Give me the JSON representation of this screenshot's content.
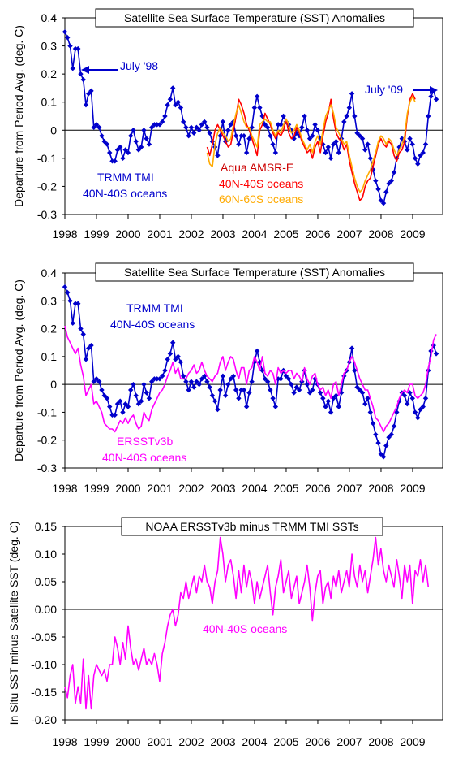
{
  "chart_data": [
    {
      "type": "line",
      "title": "Satellite Sea Surface Temperature (SST) Anomalies",
      "ylabel": "Departure from Period Avg. (deg. C)",
      "xlabel": "",
      "ylim": [
        -0.3,
        0.4
      ],
      "yticks": [
        "0.4",
        "0.3",
        "0.2",
        "0.1",
        "0",
        "-0.1",
        "-0.2",
        "-0.3"
      ],
      "xticks": [
        "1998",
        "1999",
        "2000",
        "2001",
        "2002",
        "2003",
        "2004",
        "2005",
        "2006",
        "2007",
        "2008",
        "2009"
      ],
      "annotations": [
        {
          "text": "July '98",
          "color": "#0000cc"
        },
        {
          "text": "July '09",
          "color": "#0000cc"
        },
        {
          "text": "TRMM TMI",
          "color": "#0000cc"
        },
        {
          "text": "40N-40S oceans",
          "color": "#0000cc"
        },
        {
          "text": "Aqua AMSR-E",
          "color": "#cc0000"
        },
        {
          "text": "40N-40S oceans",
          "color": "#ff0000"
        },
        {
          "text": "60N-60S oceans",
          "color": "#ffaa00"
        }
      ],
      "series": [
        {
          "name": "TRMM TMI 40N-40S oceans",
          "color": "#0000cc",
          "marker": "diamond",
          "start": 1998.0,
          "step": 0.0833,
          "values": [
            0.35,
            0.33,
            0.3,
            0.22,
            0.29,
            0.29,
            0.2,
            0.18,
            0.09,
            0.13,
            0.14,
            0.01,
            0.02,
            0.01,
            -0.02,
            -0.04,
            -0.05,
            -0.08,
            -0.11,
            -0.11,
            -0.07,
            -0.06,
            -0.1,
            -0.07,
            -0.08,
            -0.02,
            0.0,
            -0.04,
            -0.07,
            -0.06,
            0.0,
            -0.03,
            -0.05,
            0.01,
            0.02,
            0.02,
            0.02,
            0.03,
            0.05,
            0.09,
            0.11,
            0.15,
            0.09,
            0.1,
            0.08,
            0.03,
            0.01,
            -0.02,
            0.01,
            -0.01,
            0.01,
            0.0,
            0.02,
            0.03,
            0.01,
            -0.01,
            -0.04,
            -0.06,
            -0.09,
            -0.02,
            0.03,
            -0.04,
            0.0,
            0.02,
            0.03,
            -0.02,
            -0.05,
            -0.02,
            -0.02,
            -0.08,
            -0.03,
            0.01,
            0.08,
            0.12,
            0.08,
            0.05,
            0.02,
            0.01,
            -0.02,
            -0.05,
            -0.08,
            0.02,
            0.02,
            0.05,
            0.03,
            0.02,
            0.0,
            -0.03,
            -0.01,
            -0.02,
            0.01,
            0.05,
            0.0,
            -0.03,
            -0.02,
            0.02,
            0.0,
            -0.03,
            -0.05,
            -0.08,
            -0.06,
            -0.1,
            -0.05,
            -0.04,
            -0.08,
            -0.03,
            0.03,
            0.05,
            0.08,
            0.13,
            0.05,
            -0.01,
            -0.02,
            -0.03,
            -0.07,
            -0.05,
            -0.1,
            -0.14,
            -0.18,
            -0.21,
            -0.25,
            -0.26,
            -0.22,
            -0.19,
            -0.18,
            -0.15,
            -0.1,
            -0.06,
            -0.03,
            -0.04,
            -0.07,
            -0.03,
            -0.05,
            -0.1,
            -0.12,
            -0.09,
            -0.08,
            -0.05,
            0.05,
            0.12,
            0.14,
            0.11
          ]
        },
        {
          "name": "Aqua AMSR-E 40N-40S oceans",
          "color": "#ff0000",
          "start": 2002.5,
          "step": 0.0833,
          "values": [
            -0.06,
            -0.09,
            -0.05,
            0.0,
            0.02,
            0.0,
            -0.02,
            -0.04,
            -0.06,
            -0.05,
            0.0,
            0.05,
            0.11,
            0.09,
            0.06,
            0.02,
            0.0,
            -0.03,
            -0.06,
            -0.09,
            0.0,
            0.02,
            0.06,
            0.04,
            0.02,
            -0.01,
            -0.03,
            -0.01,
            -0.02,
            0.0,
            0.04,
            -0.01,
            -0.03,
            -0.02,
            0.01,
            -0.01,
            -0.04,
            -0.06,
            -0.08,
            -0.07,
            -0.1,
            -0.06,
            -0.04,
            -0.08,
            -0.02,
            0.03,
            0.06,
            0.11,
            0.04,
            -0.01,
            -0.03,
            -0.04,
            -0.07,
            -0.05,
            -0.11,
            -0.15,
            -0.19,
            -0.22,
            -0.25,
            -0.24,
            -0.2,
            -0.18,
            -0.17,
            -0.13,
            -0.09,
            -0.05,
            -0.03,
            -0.05,
            -0.06,
            -0.04,
            -0.05,
            -0.09,
            -0.11,
            -0.08,
            -0.07,
            -0.04,
            0.05,
            0.11,
            0.13,
            0.11
          ]
        },
        {
          "name": "Aqua AMSR-E 60N-60S oceans",
          "color": "#ffaa00",
          "start": 2002.5,
          "step": 0.0833,
          "values": [
            -0.08,
            -0.12,
            -0.13,
            -0.05,
            -0.01,
            0.01,
            -0.01,
            -0.02,
            -0.04,
            -0.03,
            0.02,
            0.06,
            0.09,
            0.06,
            0.03,
            0.01,
            0.01,
            -0.02,
            -0.04,
            -0.06,
            0.02,
            0.03,
            0.04,
            0.03,
            0.03,
            0.0,
            -0.02,
            0.0,
            -0.01,
            0.02,
            0.04,
            0.02,
            -0.01,
            0.0,
            0.02,
            0.0,
            -0.03,
            -0.05,
            -0.07,
            -0.05,
            -0.08,
            -0.04,
            -0.02,
            -0.05,
            0.0,
            0.05,
            0.07,
            0.09,
            0.06,
            0.01,
            -0.01,
            -0.03,
            -0.05,
            -0.04,
            -0.09,
            -0.13,
            -0.17,
            -0.2,
            -0.22,
            -0.21,
            -0.18,
            -0.16,
            -0.14,
            -0.11,
            -0.08,
            -0.04,
            -0.02,
            -0.03,
            -0.05,
            -0.03,
            -0.04,
            -0.07,
            -0.09,
            -0.07,
            -0.05,
            -0.02,
            0.06,
            0.1,
            0.12,
            0.1
          ]
        }
      ]
    },
    {
      "type": "line",
      "title": "Satellite Sea Surface Temperature (SST) Anomalies",
      "ylabel": "Departure from Period Avg. (deg. C)",
      "xlabel": "",
      "ylim": [
        -0.3,
        0.4
      ],
      "yticks": [
        "0.4",
        "0.3",
        "0.2",
        "0.1",
        "0",
        "-0.1",
        "-0.2",
        "-0.3"
      ],
      "xticks": [
        "1998",
        "1999",
        "2000",
        "2001",
        "2002",
        "2003",
        "2004",
        "2005",
        "2006",
        "2007",
        "2008",
        "2009"
      ],
      "annotations": [
        {
          "text": "TRMM TMI",
          "color": "#0000cc"
        },
        {
          "text": "40N-40S oceans",
          "color": "#0000cc"
        },
        {
          "text": "ERSSTv3b",
          "color": "#ff00ff"
        },
        {
          "text": "40N-40S oceans",
          "color": "#ff00ff"
        }
      ],
      "series": [
        {
          "name": "TRMM TMI 40N-40S oceans",
          "color": "#0000cc",
          "marker": "diamond",
          "start": 1998.0,
          "step": 0.0833,
          "values": [
            0.35,
            0.33,
            0.3,
            0.22,
            0.29,
            0.29,
            0.2,
            0.18,
            0.09,
            0.13,
            0.14,
            0.01,
            0.02,
            0.01,
            -0.02,
            -0.04,
            -0.05,
            -0.08,
            -0.11,
            -0.11,
            -0.07,
            -0.06,
            -0.1,
            -0.07,
            -0.08,
            -0.02,
            0.0,
            -0.04,
            -0.07,
            -0.06,
            0.0,
            -0.03,
            -0.05,
            0.01,
            0.02,
            0.02,
            0.02,
            0.03,
            0.05,
            0.09,
            0.11,
            0.15,
            0.09,
            0.1,
            0.08,
            0.03,
            0.01,
            -0.02,
            0.01,
            -0.01,
            0.01,
            0.0,
            0.02,
            0.03,
            0.01,
            -0.01,
            -0.04,
            -0.06,
            -0.09,
            -0.02,
            0.03,
            -0.04,
            0.0,
            0.02,
            0.03,
            -0.02,
            -0.05,
            -0.02,
            -0.02,
            -0.08,
            -0.03,
            0.01,
            0.08,
            0.12,
            0.08,
            0.05,
            0.02,
            0.01,
            -0.02,
            -0.05,
            -0.08,
            0.02,
            0.02,
            0.05,
            0.03,
            0.02,
            0.0,
            -0.03,
            -0.01,
            -0.02,
            0.01,
            0.05,
            0.0,
            -0.03,
            -0.02,
            0.02,
            0.0,
            -0.03,
            -0.05,
            -0.08,
            -0.06,
            -0.1,
            -0.05,
            -0.04,
            -0.08,
            -0.03,
            0.03,
            0.05,
            0.08,
            0.13,
            0.05,
            -0.01,
            -0.02,
            -0.03,
            -0.07,
            -0.05,
            -0.1,
            -0.14,
            -0.18,
            -0.21,
            -0.25,
            -0.26,
            -0.22,
            -0.19,
            -0.18,
            -0.15,
            -0.1,
            -0.06,
            -0.03,
            -0.04,
            -0.07,
            -0.03,
            -0.05,
            -0.1,
            -0.12,
            -0.09,
            -0.08,
            -0.05,
            0.05,
            0.12,
            0.14,
            0.11
          ]
        },
        {
          "name": "ERSSTv3b 40N-40S oceans",
          "color": "#ff00ff",
          "start": 1998.0,
          "step": 0.0833,
          "values": [
            0.21,
            0.17,
            0.15,
            0.13,
            0.11,
            0.13,
            0.07,
            0.03,
            -0.04,
            -0.02,
            0.0,
            -0.07,
            -0.06,
            -0.08,
            -0.1,
            -0.14,
            -0.15,
            -0.16,
            -0.16,
            -0.17,
            -0.15,
            -0.13,
            -0.14,
            -0.12,
            -0.14,
            -0.12,
            -0.11,
            -0.14,
            -0.16,
            -0.15,
            -0.1,
            -0.12,
            -0.13,
            -0.09,
            -0.07,
            -0.05,
            -0.03,
            -0.02,
            0.0,
            0.03,
            0.05,
            0.08,
            0.04,
            0.06,
            0.02,
            0.02,
            0.02,
            0.04,
            0.05,
            0.07,
            0.04,
            0.05,
            0.08,
            0.05,
            0.03,
            0.02,
            0.01,
            0.03,
            0.04,
            0.08,
            0.1,
            0.05,
            0.08,
            0.1,
            0.09,
            0.05,
            0.02,
            0.06,
            0.06,
            0.0,
            0.05,
            0.06,
            0.1,
            0.08,
            0.05,
            0.1,
            0.04,
            0.03,
            0.05,
            0.04,
            0.0,
            0.06,
            0.04,
            0.05,
            0.04,
            0.05,
            0.05,
            0.02,
            0.04,
            0.03,
            0.01,
            0.06,
            0.02,
            0.0,
            0.03,
            0.04,
            0.0,
            -0.02,
            -0.01,
            -0.04,
            -0.02,
            -0.05,
            0.0,
            0.01,
            -0.04,
            0.0,
            0.04,
            0.05,
            0.08,
            0.1,
            0.08,
            0.05,
            0.02,
            0.0,
            -0.02,
            -0.02,
            -0.05,
            -0.08,
            -0.12,
            -0.13,
            -0.15,
            -0.17,
            -0.15,
            -0.14,
            -0.12,
            -0.1,
            -0.08,
            -0.05,
            -0.03,
            -0.02,
            -0.03,
            0.0,
            0.0,
            -0.04,
            -0.05,
            -0.04,
            -0.03,
            0.0,
            0.06,
            0.1,
            0.16,
            0.18
          ]
        }
      ]
    },
    {
      "type": "line",
      "title": "NOAA ERSSTv3b  minus  TRMM TMI SSTs",
      "ylabel": "In Situ SST minus Satellite SST (deg. C)",
      "xlabel": "",
      "ylim": [
        -0.2,
        0.15
      ],
      "yticks": [
        "0.15",
        "0.10",
        "0.05",
        "0.00",
        "-0.05",
        "-0.10",
        "-0.15",
        "-0.20"
      ],
      "xticks": [
        "1998",
        "1999",
        "2000",
        "2001",
        "2002",
        "2003",
        "2004",
        "2005",
        "2006",
        "2007",
        "2008",
        "2009"
      ],
      "annotations": [
        {
          "text": "40N-40S oceans",
          "color": "#ff00ff"
        }
      ],
      "series": [
        {
          "name": "ERSSTv3b minus TRMM TMI",
          "color": "#ff00ff",
          "start": 1998.0,
          "step": 0.0833,
          "values": [
            -0.14,
            -0.16,
            -0.12,
            -0.1,
            -0.17,
            -0.14,
            -0.17,
            -0.09,
            -0.18,
            -0.12,
            -0.18,
            -0.12,
            -0.1,
            -0.11,
            -0.12,
            -0.11,
            -0.13,
            -0.1,
            -0.1,
            -0.05,
            -0.07,
            -0.1,
            -0.06,
            -0.09,
            -0.03,
            -0.07,
            -0.1,
            -0.09,
            -0.11,
            -0.09,
            -0.07,
            -0.1,
            -0.09,
            -0.1,
            -0.08,
            -0.1,
            -0.13,
            -0.08,
            -0.06,
            -0.03,
            -0.01,
            0.0,
            -0.03,
            -0.01,
            0.03,
            0.02,
            0.05,
            0.02,
            0.04,
            0.06,
            0.03,
            0.06,
            0.05,
            0.08,
            0.05,
            0.04,
            0.01,
            0.05,
            0.07,
            0.13,
            0.1,
            0.05,
            0.08,
            0.09,
            0.06,
            0.02,
            0.07,
            0.03,
            0.08,
            0.04,
            0.07,
            0.05,
            0.01,
            0.05,
            0.02,
            0.04,
            0.06,
            0.08,
            0.03,
            -0.01,
            0.04,
            0.06,
            0.09,
            0.03,
            0.05,
            0.07,
            0.02,
            0.04,
            0.06,
            0.01,
            0.03,
            0.05,
            0.08,
            0.04,
            -0.02,
            0.03,
            0.06,
            0.07,
            0.01,
            0.04,
            0.05,
            0.02,
            0.06,
            0.04,
            0.07,
            0.03,
            0.05,
            0.07,
            0.04,
            0.1,
            0.06,
            0.04,
            0.08,
            0.05,
            0.07,
            0.03,
            0.06,
            0.09,
            0.13,
            0.08,
            0.11,
            0.07,
            0.05,
            0.08,
            0.06,
            0.04,
            0.09,
            0.06,
            0.02,
            0.08,
            0.05,
            0.08,
            0.01,
            0.07,
            0.06,
            0.09,
            0.05,
            0.08,
            0.04
          ]
        }
      ]
    }
  ]
}
